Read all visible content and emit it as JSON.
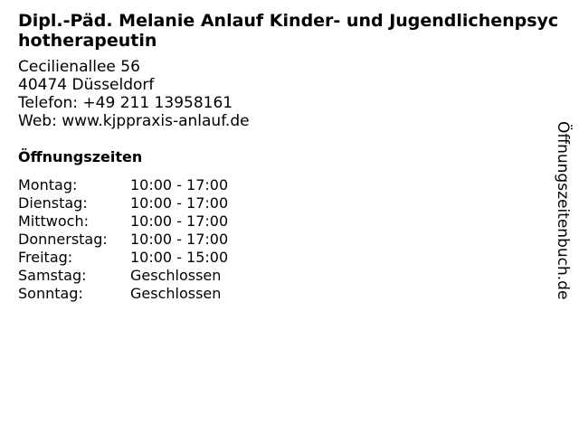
{
  "title": "Dipl.-Päd. Melanie Anlauf Kinder- und Jugendlichenpsychotherapeutin",
  "address": {
    "street": "Cecilienallee 56",
    "city": "40474 Düsseldorf",
    "phone": "Telefon: +49 211 13958161",
    "web": "Web: www.kjppraxis-anlauf.de"
  },
  "hours_title": "Öffnungszeiten",
  "hours": [
    {
      "day": "Montag:",
      "time": "10:00 - 17:00"
    },
    {
      "day": "Dienstag:",
      "time": "10:00 - 17:00"
    },
    {
      "day": "Mittwoch:",
      "time": "10:00 - 17:00"
    },
    {
      "day": "Donnerstag:",
      "time": "10:00 - 17:00"
    },
    {
      "day": "Freitag:",
      "time": "10:00 - 15:00"
    },
    {
      "day": "Samstag:",
      "time": "Geschlossen"
    },
    {
      "day": "Sonntag:",
      "time": "Geschlossen"
    }
  ],
  "watermark": "Öffnungszeitenbuch.de"
}
